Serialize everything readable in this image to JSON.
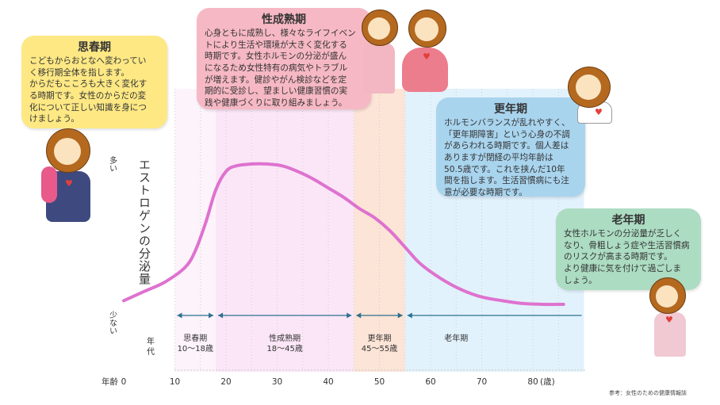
{
  "y_axis": {
    "high_label": "多い",
    "low_label": "少ない"
  },
  "axis_title": "エストロゲンの分泌量",
  "age_row_label": "年代",
  "x_axis": {
    "prefix": "年齢",
    "unit": "(歳)"
  },
  "stages": [
    {
      "name": "思春期",
      "range": "10〜18歳",
      "start": 10,
      "end": 18,
      "color": "#fdf3fb"
    },
    {
      "name": "性成熟期",
      "range": "18〜45歳",
      "start": 18,
      "end": 45,
      "color": "#fbe6f7"
    },
    {
      "name": "更年期",
      "range": "45〜55歳",
      "start": 45,
      "end": 55,
      "color": "#fce4d6"
    },
    {
      "name": "老年期",
      "range": "",
      "start": 55,
      "end": 90,
      "color": "#e2f2fc"
    }
  ],
  "boxes": {
    "puberty": {
      "title": "思春期",
      "body": "こどもからおとなへ変わってい\nく移行期全体を指します。\nからだもこころも大きく変化す\nる時期です。女性のからだの変\n化について正しい知識を身につ\nけましょう。"
    },
    "reproductive": {
      "title": "性成熟期",
      "body": "心身ともに成熟し、様々なライフイベン\nトにより生活や環境が大きく変化する\n時期です。女性ホルモンの分泌が盛ん\nになるため女性特有の病気やトラブル\nが増えます。健診やがん検診などを定\n期的に受診し、望ましい健康習慣の実\n践や健康づくりに取り組みましょう。"
    },
    "menopause": {
      "title": "更年期",
      "body": "ホルモンバランスが乱れやすく、\n「更年期障害」という心身の不調\nがあらわれる時期です。個人差は\nありますが閉経の平均年齢は\n50.5歳です。これを挟んだ10年\n間を指します。生活習慣病にも注\n意が必要な時期です。"
    },
    "old_age": {
      "title": "老年期",
      "body": "女性ホルモンの分泌量が乏しく\nなり、骨粗しょう症や生活習慣病\nのリスクが高まる時期です。\nより健康に気を付けて過ごしま\nしょう。"
    }
  },
  "source": "参考：女性のための健康情報誌",
  "colors": {
    "curve": "#de72cf",
    "arrow": "#2d6f8f",
    "puberty_box": "#fde884",
    "reproductive_box": "#f6b8c4",
    "menopause_box": "#a9d4ee",
    "old_age_box": "#acdcc2"
  },
  "chart_data": {
    "type": "line",
    "title": "",
    "xlabel": "年齢(歳)",
    "ylabel": "エストロゲンの分泌量",
    "x_ticks": [
      0,
      10,
      20,
      30,
      40,
      50,
      60,
      70,
      80
    ],
    "xlim": [
      0,
      90
    ],
    "ylim": [
      0,
      100
    ],
    "y_scale_note": "relative: 少ない (low) to 多い (high)",
    "grid": "vertical dotted lines every 5 years",
    "series": [
      {
        "name": "",
        "x": [
          0,
          4,
          8,
          12,
          14,
          16,
          18,
          20,
          22,
          25,
          28,
          31,
          34,
          37,
          40,
          43,
          46,
          49,
          52,
          55,
          58,
          62,
          66,
          70,
          74,
          78,
          82,
          86
        ],
        "y": [
          8,
          13,
          18,
          26,
          35,
          50,
          68,
          78,
          81,
          82,
          82,
          81,
          78,
          74,
          69,
          64,
          58,
          53,
          46,
          37,
          28,
          20,
          14,
          10,
          8,
          6.5,
          6,
          6
        ]
      }
    ]
  }
}
